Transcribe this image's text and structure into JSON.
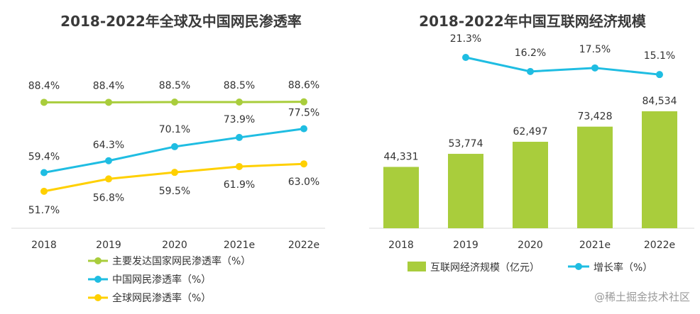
{
  "chart_data": [
    {
      "type": "line",
      "title": "2018-2022年全球及中国网民渗透率",
      "categories": [
        "2018",
        "2019",
        "2020",
        "2021e",
        "2022e"
      ],
      "series": [
        {
          "name": "主要发达国家网民渗透率（%）",
          "color": "#a9cd3c",
          "values": [
            88.4,
            88.4,
            88.5,
            88.5,
            88.6
          ],
          "labels": [
            "88.4%",
            "88.4%",
            "88.5%",
            "88.5%",
            "88.6%"
          ]
        },
        {
          "name": "中国网民渗透率（%）",
          "color": "#1fbde2",
          "values": [
            59.4,
            64.3,
            70.1,
            73.9,
            77.5
          ],
          "labels": [
            "59.4%",
            "64.3%",
            "70.1%",
            "73.9%",
            "77.5%"
          ]
        },
        {
          "name": "全球网民渗透率（%）",
          "color": "#ffd000",
          "values": [
            51.7,
            56.8,
            59.5,
            61.9,
            63.0
          ],
          "labels": [
            "51.7%",
            "56.8%",
            "59.5%",
            "61.9%",
            "63.0%"
          ]
        }
      ],
      "xlabel": "",
      "ylabel": "",
      "ylim": [
        30,
        100
      ],
      "grid": false,
      "legend": "bottom"
    },
    {
      "type": "bar",
      "title": "2018-2022年中国互联网经济规模",
      "categories": [
        "2018",
        "2019",
        "2020",
        "2021e",
        "2022e"
      ],
      "series": [
        {
          "name": "互联网经济规模（亿元）",
          "color": "#a9cd3c",
          "values": [
            44331,
            53774,
            62497,
            73428,
            84534
          ],
          "labels": [
            "44,331",
            "53,774",
            "62,497",
            "73,428",
            "84,534"
          ]
        },
        {
          "name": "增长率（%）",
          "type": "line",
          "color": "#1fbde2",
          "values": [
            null,
            21.3,
            16.2,
            17.5,
            15.1
          ],
          "labels": [
            "",
            "21.3%",
            "16.2%",
            "17.5%",
            "15.1%"
          ]
        }
      ],
      "xlabel": "",
      "ylabel": "",
      "ylim": [
        0,
        100000
      ],
      "grid": false,
      "legend": "bottom"
    }
  ],
  "watermark": "@稀土掘金技术社区"
}
